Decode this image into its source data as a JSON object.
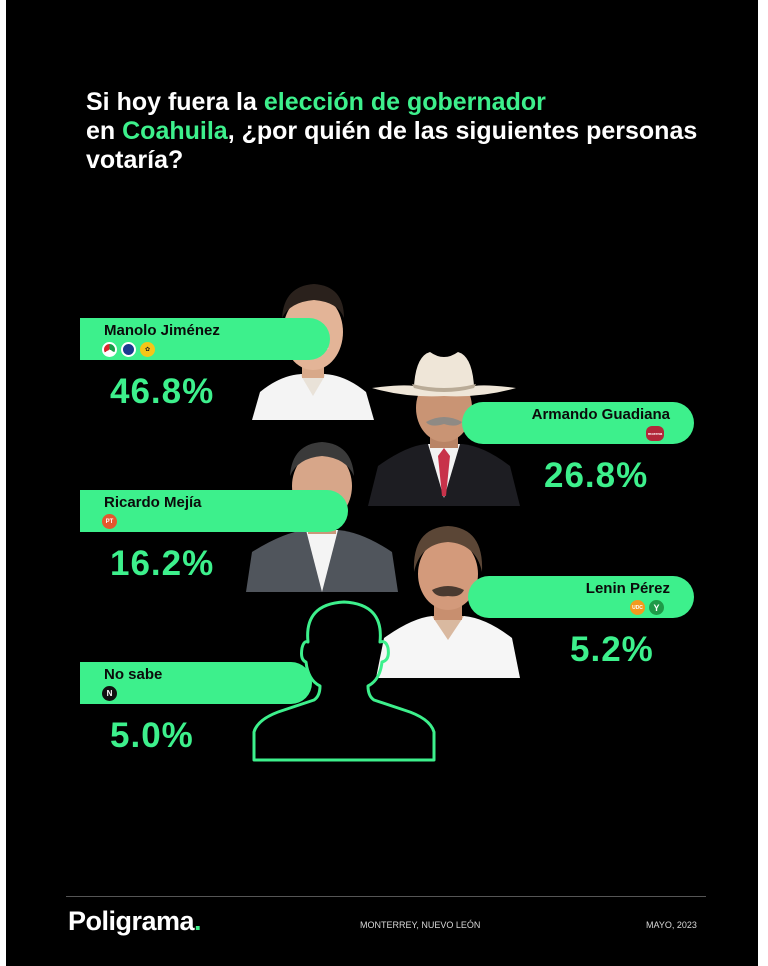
{
  "question": {
    "part1": "Si hoy fuera la ",
    "highlight1": "elección de gobernador",
    "part2": "en ",
    "highlight2": "Coahuila",
    "part3": ", ¿por quién de las siguientes personas votaría?"
  },
  "chart_data": {
    "type": "bar",
    "categories": [
      "Manolo Jiménez",
      "Armando Guadiana",
      "Ricardo Mejía",
      "Lenin Pérez",
      "No sabe"
    ],
    "values": [
      46.8,
      26.8,
      16.2,
      5.2,
      5.0
    ],
    "value_labels": [
      "46.8%",
      "26.8%",
      "16.2%",
      "5.2%",
      "5.0%"
    ],
    "unit": "%"
  },
  "candidates": [
    {
      "name": "Manolo Jiménez",
      "pct": "46.8%",
      "logos": [
        "pri-logo",
        "pan-logo",
        "prd-logo"
      ]
    },
    {
      "name": "Armando Guadiana",
      "pct": "26.8%",
      "logos": [
        "morena-logo"
      ],
      "logo_text": "morena"
    },
    {
      "name": "Ricardo Mejía",
      "pct": "16.2%",
      "logos": [
        "pt-logo"
      ],
      "logo_text": "PT"
    },
    {
      "name": "Lenin Pérez",
      "pct": "5.2%",
      "logos": [
        "udc-logo",
        "pvem-logo"
      ],
      "logo_text": "UDC"
    },
    {
      "name": "No sabe",
      "pct": "5.0%",
      "logos": [
        "n-icon"
      ],
      "logo_text": "N"
    }
  ],
  "footer": {
    "brand": "Poligrama",
    "brand_dot": ".",
    "location": "MONTERREY, NUEVO LEÓN",
    "date": "MAYO, 2023"
  },
  "colors": {
    "accent": "#3df08c",
    "background": "#000000",
    "text": "#ffffff"
  }
}
